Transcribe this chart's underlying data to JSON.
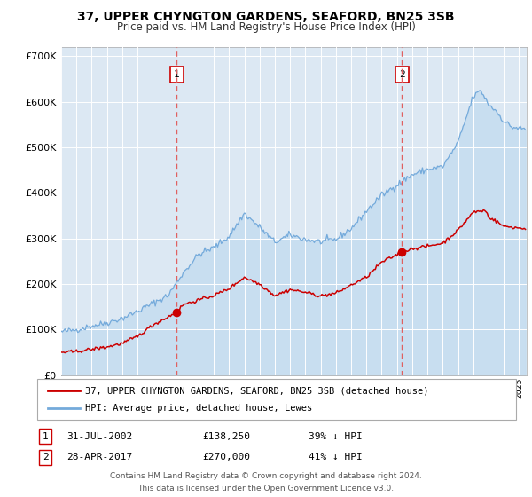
{
  "title1": "37, UPPER CHYNGTON GARDENS, SEAFORD, BN25 3SB",
  "title2": "Price paid vs. HM Land Registry's House Price Index (HPI)",
  "legend_line1": "37, UPPER CHYNGTON GARDENS, SEAFORD, BN25 3SB (detached house)",
  "legend_line2": "HPI: Average price, detached house, Lewes",
  "table_row1_date": "31-JUL-2002",
  "table_row1_price": "£138,250",
  "table_row1_hpi": "39% ↓ HPI",
  "table_row2_date": "28-APR-2017",
  "table_row2_price": "£270,000",
  "table_row2_hpi": "41% ↓ HPI",
  "footnote1": "Contains HM Land Registry data © Crown copyright and database right 2024.",
  "footnote2": "This data is licensed under the Open Government Licence v3.0.",
  "marker1_date": 2002.58,
  "marker1_value": 138250,
  "marker2_date": 2017.33,
  "marker2_value": 270000,
  "vline1_x": 2002.58,
  "vline2_x": 2017.33,
  "hpi_color": "#74aadb",
  "hpi_fill_color": "#c5ddf0",
  "price_color": "#cc0000",
  "vline_color": "#e06060",
  "box_border_color": "#cc0000",
  "plot_bg": "#dce8f3",
  "grid_color": "#ffffff",
  "ylim": [
    0,
    720000
  ],
  "xlim": [
    1995.0,
    2025.5
  ],
  "yticks": [
    0,
    100000,
    200000,
    300000,
    400000,
    500000,
    600000,
    700000
  ]
}
